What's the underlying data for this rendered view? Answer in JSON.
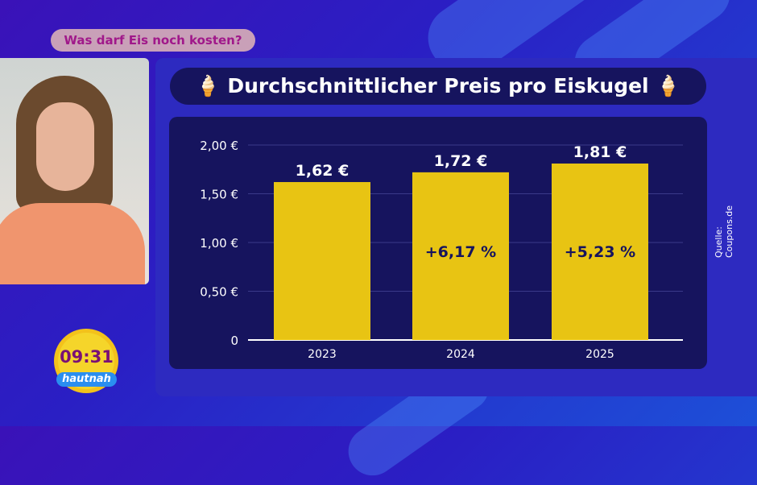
{
  "topic": "Was darf Eis noch kosten?",
  "clock": {
    "time": "09:31",
    "show": "hautnah"
  },
  "colors": {
    "bar": "#e8c413",
    "panel": "#16145e",
    "accent": "#a0188a"
  },
  "chart_data": {
    "type": "bar",
    "title": "Durchschnittlicher Preis pro Eiskugel",
    "title_icon": "ice-cream-icon",
    "source": "Quelle: Coupons.de",
    "categories": [
      "2023",
      "2024",
      "2025"
    ],
    "values": [
      1.62,
      1.72,
      1.81
    ],
    "value_labels": [
      "1,62 €",
      "1,72 €",
      "1,81 €"
    ],
    "change_labels": [
      "",
      "+6,17 %",
      "+5,23 %"
    ],
    "yticks": [
      0,
      0.5,
      1,
      1.5,
      2
    ],
    "ytick_labels": [
      "0",
      "0,50 €",
      "1,00 €",
      "1,50 €",
      "2,00 €"
    ],
    "ylim": [
      0,
      2
    ],
    "grid": true,
    "xlabel": "",
    "ylabel": ""
  }
}
